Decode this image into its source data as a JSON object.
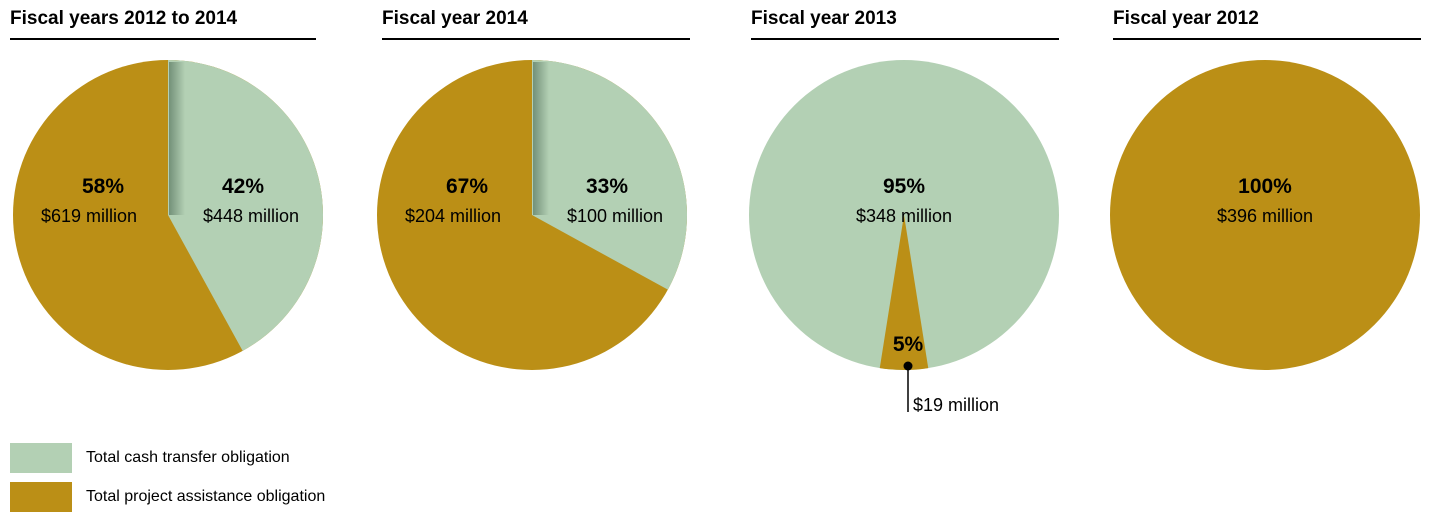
{
  "colors": {
    "cash_transfer": "#b3d0b4",
    "project_assistance": "#bb8f16"
  },
  "panels": [
    {
      "title": "Fiscal years 2012 to 2014"
    },
    {
      "title": "Fiscal year 2014"
    },
    {
      "title": "Fiscal year 2013"
    },
    {
      "title": "Fiscal year 2012"
    }
  ],
  "legend": [
    {
      "label": "Total cash transfer obligation",
      "color_key": "cash_transfer"
    },
    {
      "label": "Total project assistance obligation",
      "color_key": "project_assistance"
    }
  ],
  "chart_data": [
    {
      "type": "pie",
      "title": "Fiscal years 2012 to 2014",
      "slices": [
        {
          "name": "Total cash transfer obligation",
          "percent": 42,
          "value_label": "$448 million",
          "percent_label": "42%"
        },
        {
          "name": "Total project assistance obligation",
          "percent": 58,
          "value_label": "$619 million",
          "percent_label": "58%"
        }
      ]
    },
    {
      "type": "pie",
      "title": "Fiscal year 2014",
      "slices": [
        {
          "name": "Total cash transfer obligation",
          "percent": 33,
          "value_label": "$100 million",
          "percent_label": "33%"
        },
        {
          "name": "Total project assistance obligation",
          "percent": 67,
          "value_label": "$204 million",
          "percent_label": "67%"
        }
      ]
    },
    {
      "type": "pie",
      "title": "Fiscal year 2013",
      "slices": [
        {
          "name": "Total cash transfer obligation",
          "percent": 95,
          "value_label": "$348 million",
          "percent_label": "95%"
        },
        {
          "name": "Total project assistance obligation",
          "percent": 5,
          "value_label": "$19 million",
          "percent_label": "5%"
        }
      ]
    },
    {
      "type": "pie",
      "title": "Fiscal year 2012",
      "slices": [
        {
          "name": "Total project assistance obligation",
          "percent": 100,
          "value_label": "$396 million",
          "percent_label": "100%"
        }
      ]
    }
  ]
}
